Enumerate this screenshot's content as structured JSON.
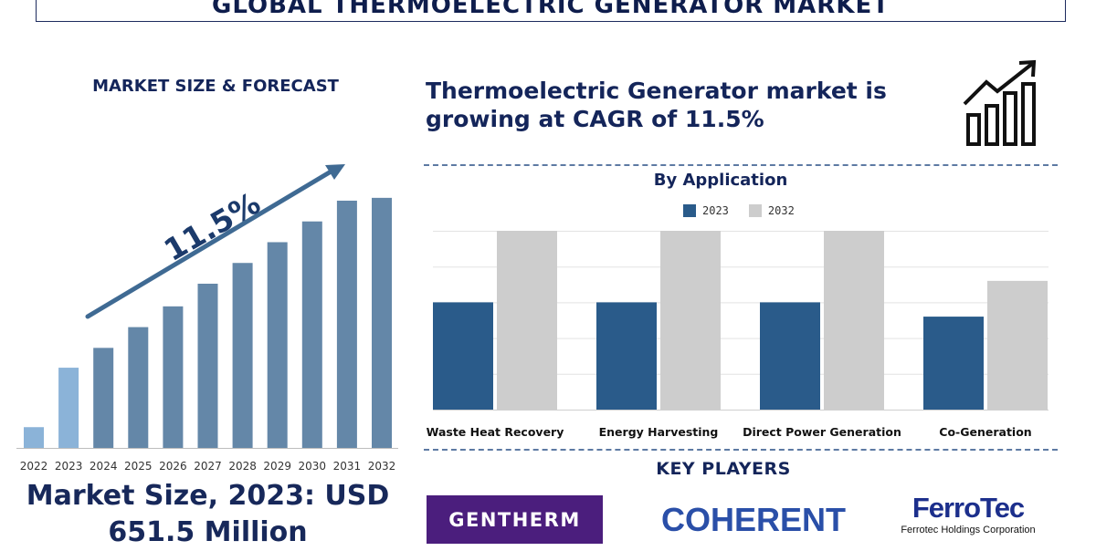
{
  "title": "GLOBAL THERMOELECTRIC GENERATOR MARKET",
  "left_panel": {
    "subtitle": "MARKET SIZE & FORECAST",
    "market_size_line1": "Market Size, 2023: USD",
    "market_size_line2": "651.5 Million"
  },
  "headline": {
    "line1": "Thermoelectric Generator market is",
    "line2": "growing at CAGR of 11.5%"
  },
  "growth_icon": "bar-chart-growth-arrow-icon",
  "key_players": {
    "title": "KEY PLAYERS",
    "logos": [
      {
        "name": "GENTHERM",
        "color": "#4b1e7d"
      },
      {
        "name": "COHERENT",
        "color": "#2a4fa8"
      },
      {
        "name": "FerroTec",
        "subtitle": "Ferrotec Holdings Corporation",
        "color": "#1c2f8c"
      }
    ]
  },
  "chart_data": [
    {
      "type": "bar",
      "categories": [
        "2022",
        "2023",
        "2024",
        "2025",
        "2026",
        "2027",
        "2028",
        "2029",
        "2030",
        "2031",
        "2032"
      ],
      "values": [
        22,
        85,
        106,
        128,
        150,
        174,
        196,
        218,
        240,
        262,
        265
      ],
      "bar_colors": [
        "#8bb3d8",
        "#8bb3d8",
        "#6487a8",
        "#6487a8",
        "#6487a8",
        "#6487a8",
        "#6487a8",
        "#6487a8",
        "#6487a8",
        "#6487a8",
        "#6487a8"
      ],
      "annotation": "11.5%",
      "annotation_color": "#1b3a6b",
      "arrow_color": "#3f6a93",
      "ylim": [
        0,
        290
      ]
    },
    {
      "type": "bar",
      "title": "By Application",
      "categories": [
        "Waste Heat Recovery",
        "Energy Harvesting",
        "Direct Power Generation",
        "Co-Generation"
      ],
      "series": [
        {
          "name": "2023",
          "color": "#2a5b8a",
          "values": [
            3.0,
            3.0,
            3.0,
            2.6
          ]
        },
        {
          "name": "2032",
          "color": "#cdcdcd",
          "values": [
            5.0,
            5.0,
            5.0,
            3.6
          ]
        }
      ],
      "ylim": [
        0,
        5
      ],
      "grid": true
    }
  ]
}
